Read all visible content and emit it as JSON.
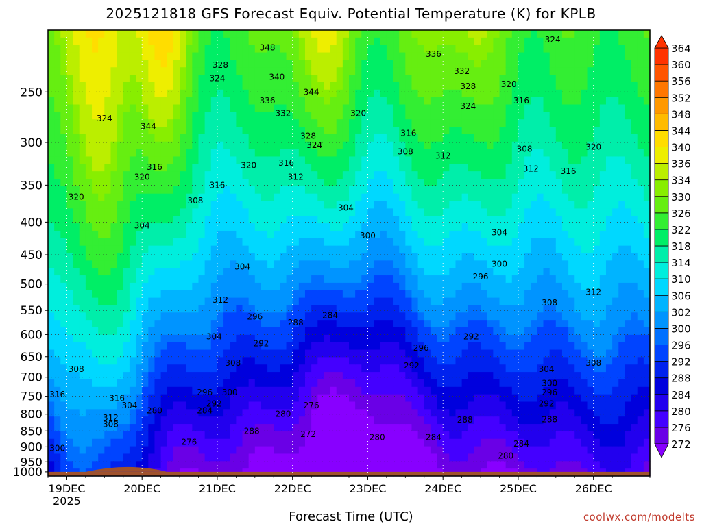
{
  "title": "2025121818 GFS Forecast Equiv. Potential Temperature (K) for KPLB",
  "credit": "coolwx.com/modelts",
  "chart_data": {
    "type": "heatmap",
    "title": "2025121818 GFS Forecast Equiv. Potential Temperature (K) for KPLB",
    "xlabel": "Forecast Time (UTC)",
    "ylabel": "",
    "x_ticks": [
      "19DEC",
      "20DEC",
      "21DEC",
      "22DEC",
      "23DEC",
      "24DEC",
      "25DEC",
      "26DEC"
    ],
    "x_year_label": "2025",
    "x_range": [
      "2025-12-18 18Z",
      "2025-12-26 18Z"
    ],
    "y_ticks": [
      250,
      300,
      350,
      400,
      450,
      500,
      550,
      600,
      650,
      700,
      750,
      800,
      850,
      900,
      950,
      1000
    ],
    "y_range": [
      200,
      1000
    ],
    "y_direction": "pressure decreasing upward",
    "grid": true,
    "colorbar": {
      "levels": [
        272,
        276,
        280,
        284,
        288,
        292,
        296,
        300,
        302,
        306,
        310,
        314,
        318,
        322,
        326,
        330,
        334,
        336,
        340,
        344,
        348,
        352,
        356,
        360,
        364
      ],
      "colors": [
        "#8800ff",
        "#6a00e6",
        "#4400ff",
        "#2200ee",
        "#0000dd",
        "#0022ee",
        "#0044ff",
        "#0070ff",
        "#0094ff",
        "#00b4ff",
        "#00d8ff",
        "#00eedd",
        "#00eeaa",
        "#00ee66",
        "#33ee33",
        "#66ee11",
        "#88ee00",
        "#bbee00",
        "#eeee00",
        "#ffdd00",
        "#ffbb00",
        "#ff9900",
        "#ff7700",
        "#ff5500",
        "#ff3300"
      ]
    },
    "contour_labels": [
      {
        "t": "20251219T12",
        "p": 275,
        "v": "324"
      },
      {
        "t": "20251220T02",
        "p": 283,
        "v": "344"
      },
      {
        "t": "20251220T04",
        "p": 328,
        "v": "316"
      },
      {
        "t": "20251220T00",
        "p": 340,
        "v": "320"
      },
      {
        "t": "20251219T03",
        "p": 365,
        "v": "320"
      },
      {
        "t": "20251220T17",
        "p": 370,
        "v": "308"
      },
      {
        "t": "20251220T00",
        "p": 405,
        "v": "304"
      },
      {
        "t": "20251221T00",
        "p": 350,
        "v": "316"
      },
      {
        "t": "20251221T10",
        "p": 326,
        "v": "320"
      },
      {
        "t": "20251221T00",
        "p": 238,
        "v": "324"
      },
      {
        "t": "20251221T01",
        "p": 227,
        "v": "328"
      },
      {
        "t": "20251221T16",
        "p": 213,
        "v": "348"
      },
      {
        "t": "20251221T19",
        "p": 237,
        "v": "340"
      },
      {
        "t": "20251221T16",
        "p": 258,
        "v": "336"
      },
      {
        "t": "20251221T21",
        "p": 270,
        "v": "332"
      },
      {
        "t": "20251222T06",
        "p": 250,
        "v": "344"
      },
      {
        "t": "20251222T05",
        "p": 293,
        "v": "328"
      },
      {
        "t": "20251222T07",
        "p": 303,
        "v": "324"
      },
      {
        "t": "20251221T22",
        "p": 323,
        "v": "316"
      },
      {
        "t": "20251222T01",
        "p": 340,
        "v": "312"
      },
      {
        "t": "20251222T21",
        "p": 270,
        "v": "320"
      },
      {
        "t": "20251223T13",
        "p": 290,
        "v": "316"
      },
      {
        "t": "20251223T12",
        "p": 310,
        "v": "308"
      },
      {
        "t": "20251224T00",
        "p": 315,
        "v": "312"
      },
      {
        "t": "20251223T21",
        "p": 218,
        "v": "336"
      },
      {
        "t": "20251224T06",
        "p": 232,
        "v": "332"
      },
      {
        "t": "20251224T08",
        "p": 245,
        "v": "328"
      },
      {
        "t": "20251224T08",
        "p": 263,
        "v": "324"
      },
      {
        "t": "20251224T21",
        "p": 243,
        "v": "320"
      },
      {
        "t": "20251225T01",
        "p": 258,
        "v": "316"
      },
      {
        "t": "20251225T11",
        "p": 207,
        "v": "324"
      },
      {
        "t": "20251225T02",
        "p": 307,
        "v": "308"
      },
      {
        "t": "20251225T04",
        "p": 330,
        "v": "312"
      },
      {
        "t": "20251225T16",
        "p": 333,
        "v": "316"
      },
      {
        "t": "20251226T00",
        "p": 305,
        "v": "320"
      },
      {
        "t": "20251222T17",
        "p": 380,
        "v": "304"
      },
      {
        "t": "20251223T00",
        "p": 420,
        "v": "300"
      },
      {
        "t": "20251224T18",
        "p": 415,
        "v": "304"
      },
      {
        "t": "20251224T18",
        "p": 465,
        "v": "300"
      },
      {
        "t": "20251224T12",
        "p": 487,
        "v": "296"
      },
      {
        "t": "20251225T10",
        "p": 535,
        "v": "308"
      },
      {
        "t": "20251226T00",
        "p": 515,
        "v": "312"
      },
      {
        "t": "20251226T00",
        "p": 665,
        "v": "308"
      },
      {
        "t": "20251221T08",
        "p": 470,
        "v": "304"
      },
      {
        "t": "20251221T01",
        "p": 530,
        "v": "312"
      },
      {
        "t": "20251221T12",
        "p": 563,
        "v": "296"
      },
      {
        "t": "20251221T14",
        "p": 620,
        "v": "292"
      },
      {
        "t": "20251220T23",
        "p": 605,
        "v": "304"
      },
      {
        "t": "20251221T05",
        "p": 665,
        "v": "308"
      },
      {
        "t": "20251222T01",
        "p": 575,
        "v": "288"
      },
      {
        "t": "20251222T12",
        "p": 560,
        "v": "284"
      },
      {
        "t": "20251223T17",
        "p": 630,
        "v": "296"
      },
      {
        "t": "20251223T14",
        "p": 672,
        "v": "292"
      },
      {
        "t": "20251224T09",
        "p": 605,
        "v": "292"
      },
      {
        "t": "20251225T09",
        "p": 680,
        "v": "304"
      },
      {
        "t": "20251225T10",
        "p": 715,
        "v": "300"
      },
      {
        "t": "20251225T10",
        "p": 740,
        "v": "296"
      },
      {
        "t": "20251225T09",
        "p": 770,
        "v": "292"
      },
      {
        "t": "20251225T10",
        "p": 815,
        "v": "288"
      },
      {
        "t": "20251224T07",
        "p": 817,
        "v": "288"
      },
      {
        "t": "20251223T21",
        "p": 870,
        "v": "284"
      },
      {
        "t": "20251225T01",
        "p": 890,
        "v": "284"
      },
      {
        "t": "20251224T20",
        "p": 930,
        "v": "280"
      },
      {
        "t": "20251223T03",
        "p": 870,
        "v": "280"
      },
      {
        "t": "20251222T05",
        "p": 860,
        "v": "272"
      },
      {
        "t": "20251222T06",
        "p": 775,
        "v": "276"
      },
      {
        "t": "20251221T21",
        "p": 800,
        "v": "280"
      },
      {
        "t": "20251221T11",
        "p": 850,
        "v": "288"
      },
      {
        "t": "20251220T20",
        "p": 740,
        "v": "296"
      },
      {
        "t": "20251221T04",
        "p": 740,
        "v": "300"
      },
      {
        "t": "20251220T23",
        "p": 770,
        "v": "292"
      },
      {
        "t": "20251220T20",
        "p": 790,
        "v": "284"
      },
      {
        "t": "20251220T04",
        "p": 790,
        "v": "280"
      },
      {
        "t": "20251220T15",
        "p": 885,
        "v": "276"
      },
      {
        "t": "20251219T16",
        "p": 755,
        "v": "316"
      },
      {
        "t": "20251219T20",
        "p": 775,
        "v": "304"
      },
      {
        "t": "20251219T14",
        "p": 810,
        "v": "312"
      },
      {
        "t": "20251219T14",
        "p": 830,
        "v": "308"
      },
      {
        "t": "20251219T03",
        "p": 680,
        "v": "308"
      },
      {
        "t": "20251218T21",
        "p": 745,
        "v": "316"
      },
      {
        "t": "20251218T21",
        "p": 905,
        "v": "300"
      }
    ],
    "legend": "colorbar right"
  }
}
